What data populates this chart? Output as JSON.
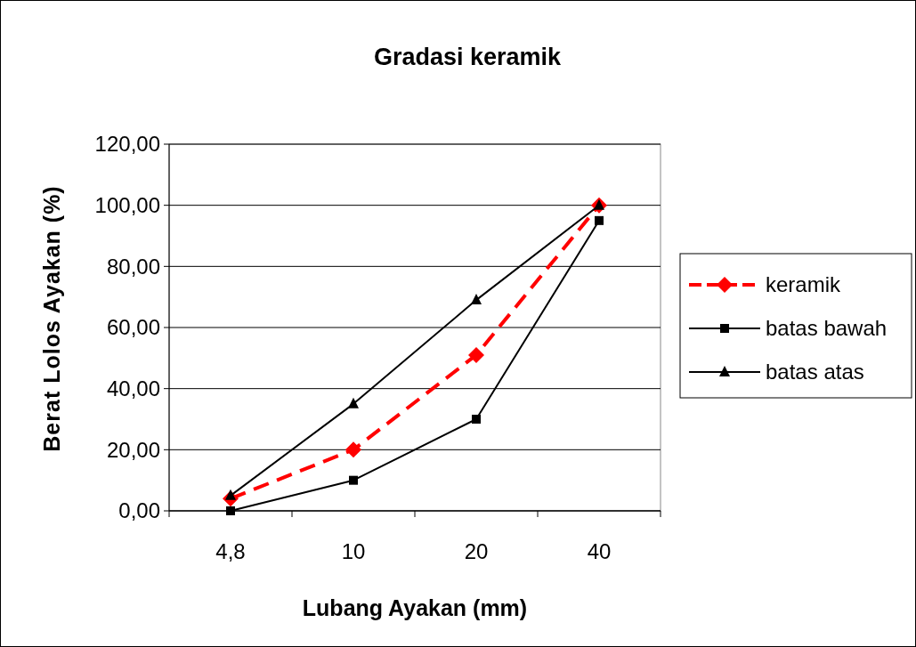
{
  "chart_data": {
    "type": "line",
    "title": "Gradasi keramik",
    "xlabel": "Lubang Ayakan (mm)",
    "ylabel": "Berat Lolos Ayakan (%)",
    "categories": [
      "4,8",
      "10",
      "20",
      "40"
    ],
    "series": [
      {
        "name": "keramik",
        "color": "#ff0000",
        "values": [
          4,
          20,
          51,
          100
        ],
        "marker": "diamond",
        "line_style": "dashed"
      },
      {
        "name": "batas bawah",
        "color": "#000000",
        "values": [
          0,
          10,
          30,
          95
        ],
        "marker": "square",
        "line_style": "solid"
      },
      {
        "name": "batas atas",
        "color": "#000000",
        "values": [
          5,
          35,
          69,
          100
        ],
        "marker": "triangle",
        "line_style": "solid"
      }
    ],
    "ylim": [
      0,
      120
    ],
    "yticks": [
      {
        "value": 0,
        "label": "0,00"
      },
      {
        "value": 20,
        "label": "20,00"
      },
      {
        "value": 40,
        "label": "40,00"
      },
      {
        "value": 60,
        "label": "60,00"
      },
      {
        "value": 80,
        "label": "80,00"
      },
      {
        "value": 100,
        "label": "100,00"
      },
      {
        "value": 120,
        "label": "120,00"
      }
    ],
    "grid": "y",
    "legend": "right"
  }
}
